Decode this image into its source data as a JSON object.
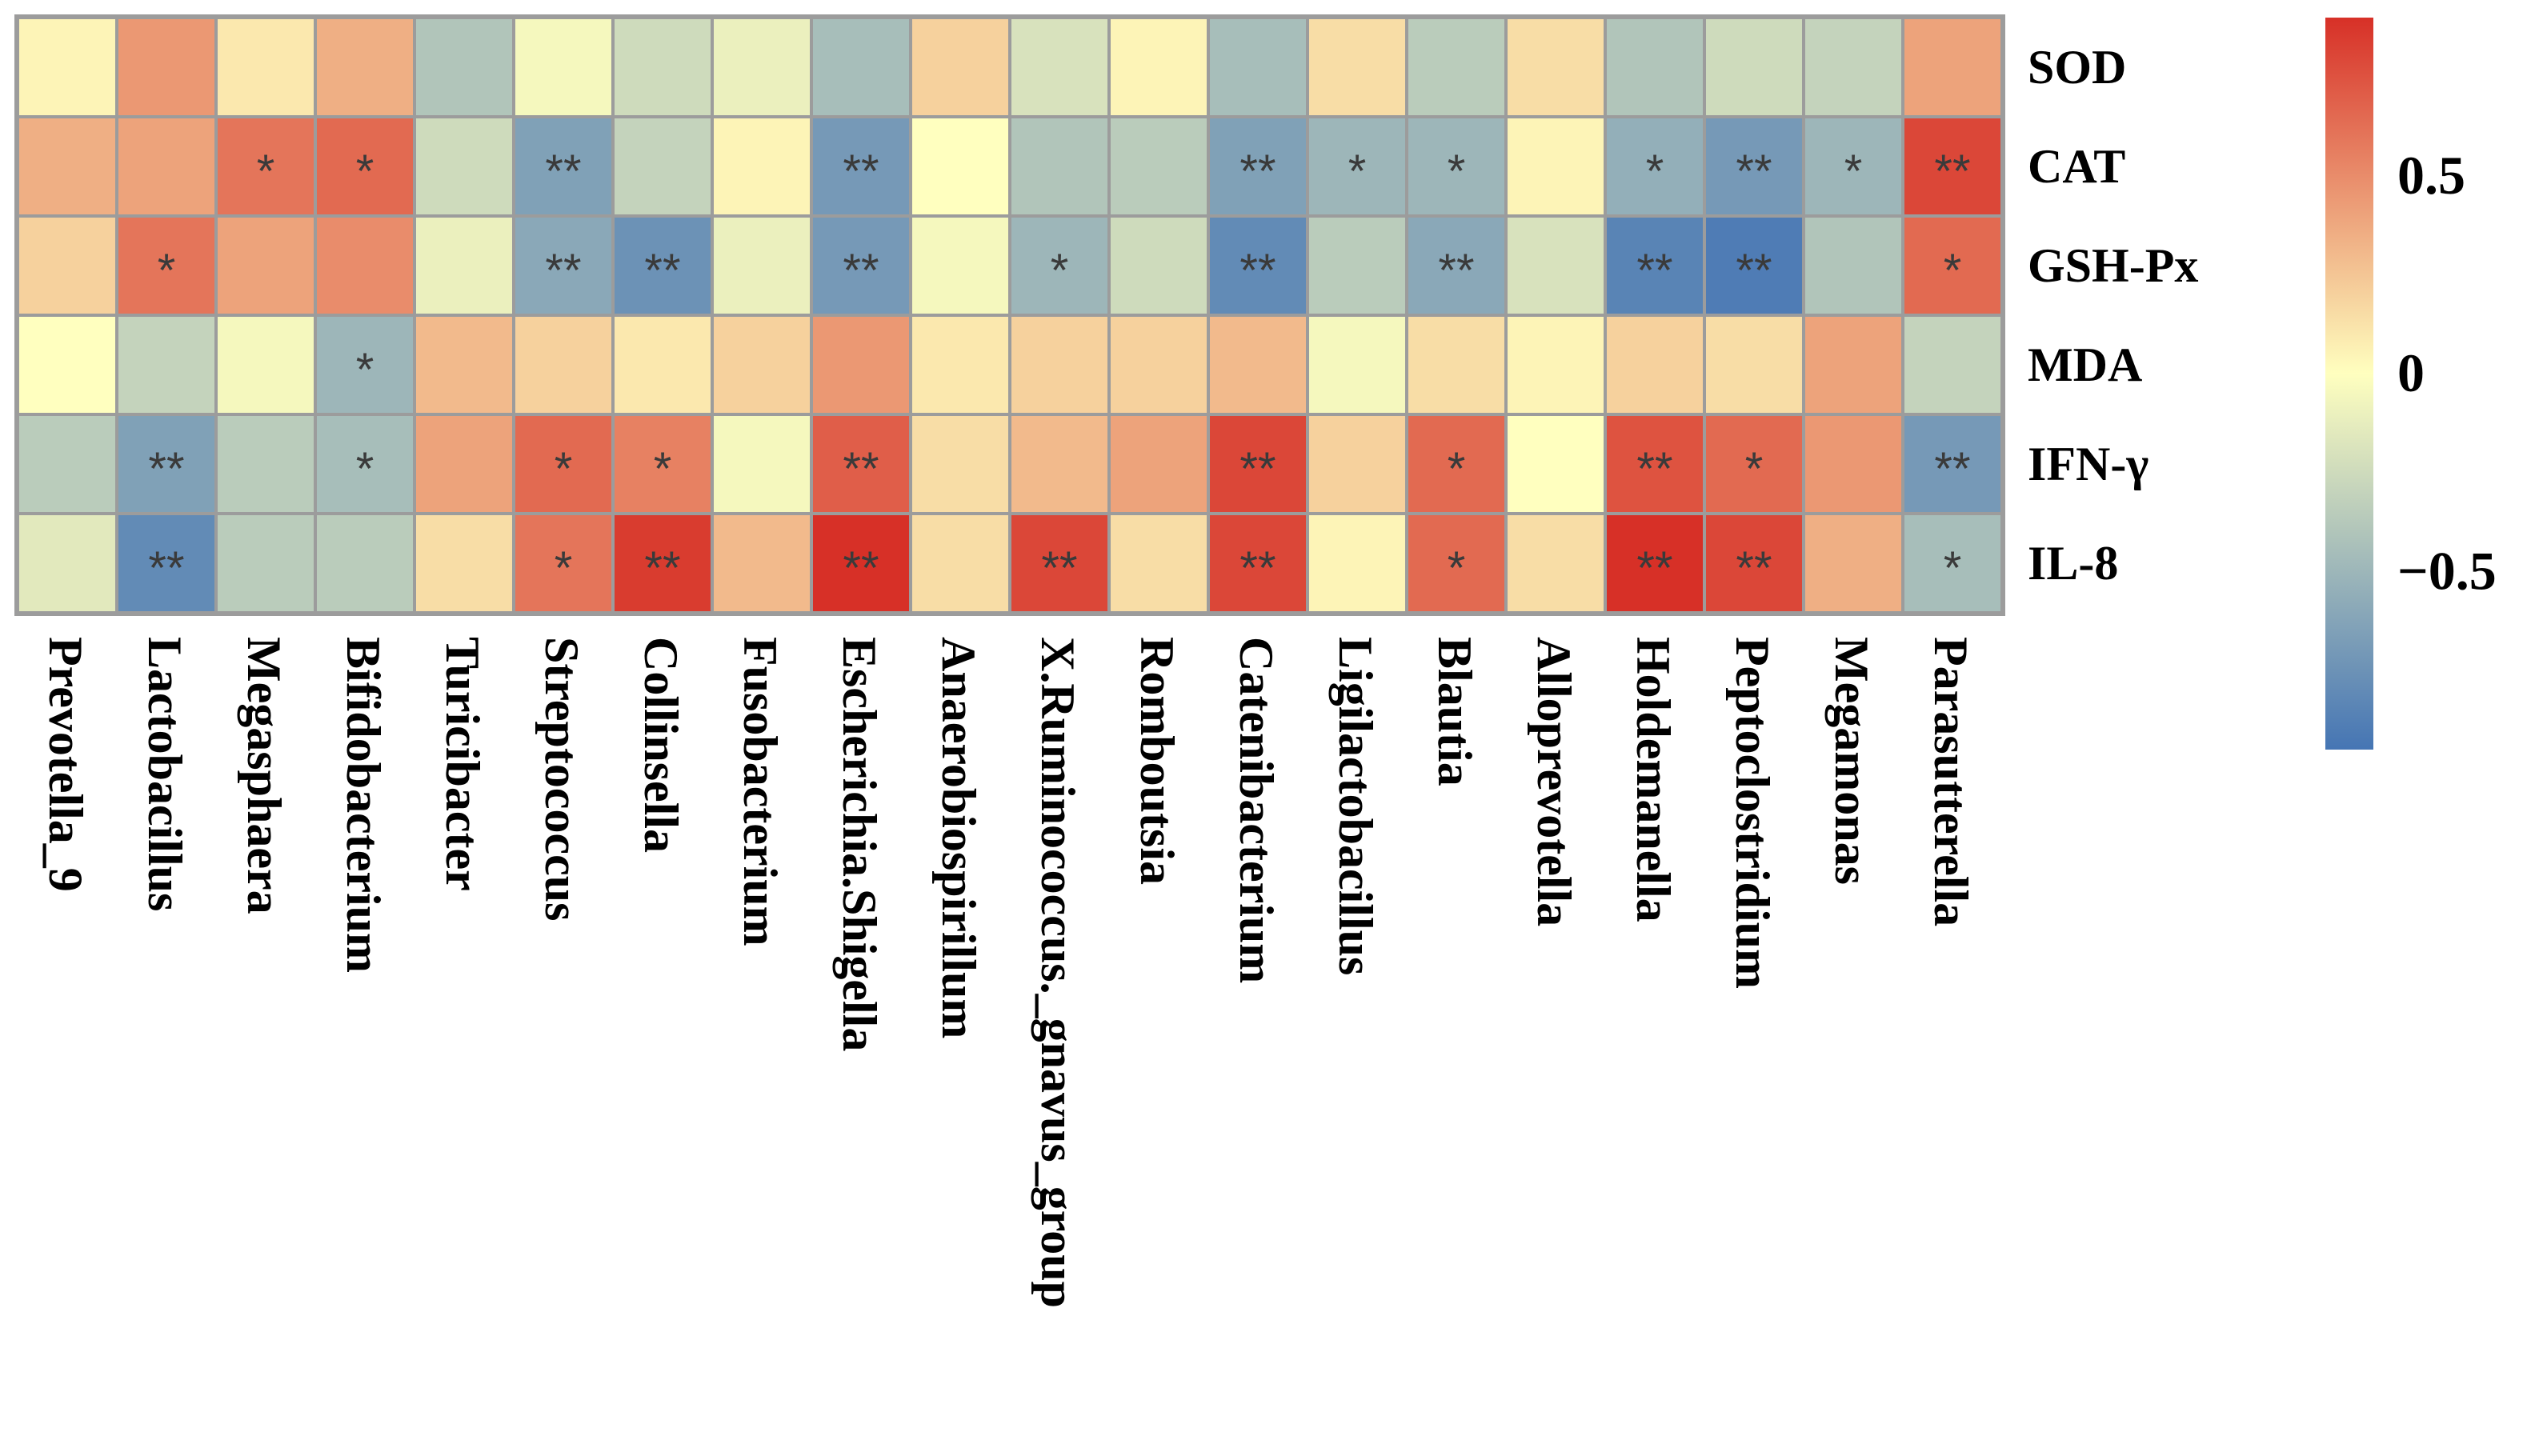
{
  "chart_data": {
    "type": "heatmap",
    "title": "",
    "columns": [
      "Prevotella_9",
      "Lactobacillus",
      "Megasphaera",
      "Bifidobacterium",
      "Turicibacter",
      "Streptococcus",
      "Collinsella",
      "Fusobacterium",
      "Escherichia.Shigella",
      "Anaerobiospirillum",
      "X.Ruminococcus._gnavus_group",
      "Romboutsia",
      "Catenibacterium",
      "Ligilactobacillus",
      "Blautia",
      "Alloprevotella",
      "Holdemanella",
      "Peptoclostridium",
      "Megamonas",
      "Parasutterella"
    ],
    "rows": [
      "SOD",
      "CAT",
      "GSH-Px",
      "MDA",
      "IFN-γ",
      "IL-8"
    ],
    "values": [
      [
        0.05,
        0.45,
        0.1,
        0.35,
        -0.4,
        -0.05,
        -0.25,
        -0.1,
        -0.45,
        0.2,
        -0.2,
        0.05,
        -0.45,
        0.15,
        -0.35,
        0.15,
        -0.4,
        -0.25,
        -0.3,
        0.4
      ],
      [
        0.35,
        0.4,
        0.6,
        0.65,
        -0.25,
        -0.65,
        -0.3,
        0.05,
        -0.7,
        0.0,
        -0.4,
        -0.35,
        -0.65,
        -0.5,
        -0.5,
        0.05,
        -0.55,
        -0.7,
        -0.5,
        0.8
      ],
      [
        0.2,
        0.6,
        0.4,
        0.5,
        -0.1,
        -0.6,
        -0.75,
        -0.1,
        -0.7,
        -0.05,
        -0.5,
        -0.25,
        -0.8,
        -0.35,
        -0.6,
        -0.2,
        -0.85,
        -0.9,
        -0.4,
        0.65
      ],
      [
        0.0,
        -0.3,
        -0.05,
        -0.5,
        0.3,
        0.2,
        0.1,
        0.2,
        0.45,
        0.1,
        0.2,
        0.2,
        0.3,
        -0.05,
        0.15,
        0.05,
        0.2,
        0.15,
        0.4,
        -0.3
      ],
      [
        -0.35,
        -0.65,
        -0.35,
        -0.45,
        0.4,
        0.65,
        0.55,
        -0.05,
        0.7,
        0.15,
        0.3,
        0.4,
        0.8,
        0.2,
        0.65,
        0.0,
        0.75,
        0.65,
        0.45,
        -0.7
      ],
      [
        -0.15,
        -0.8,
        -0.35,
        -0.35,
        0.15,
        0.6,
        0.85,
        0.3,
        0.9,
        0.15,
        0.8,
        0.15,
        0.8,
        0.05,
        0.65,
        0.15,
        0.9,
        0.8,
        0.35,
        -0.45
      ]
    ],
    "significance": [
      [
        "",
        "",
        "",
        "",
        "",
        "",
        "",
        "",
        "",
        "",
        "",
        "",
        "",
        "",
        "",
        "",
        "",
        "",
        "",
        ""
      ],
      [
        "",
        "",
        "*",
        "*",
        "",
        "**",
        "",
        "",
        "**",
        "",
        "",
        "",
        "**",
        "*",
        "*",
        "",
        "*",
        "**",
        "*",
        "**"
      ],
      [
        "",
        "*",
        "",
        "",
        "",
        "**",
        "**",
        "",
        "**",
        "",
        "*",
        "",
        "**",
        "",
        "**",
        "",
        "**",
        "**",
        "",
        "*"
      ],
      [
        "",
        "",
        "",
        "*",
        "",
        "",
        "",
        "",
        "",
        "",
        "",
        "",
        "",
        "",
        "",
        "",
        "",
        "",
        "",
        ""
      ],
      [
        "",
        "**",
        "",
        "*",
        "",
        "*",
        "*",
        "",
        "**",
        "",
        "",
        "",
        "**",
        "",
        "*",
        "",
        "**",
        "*",
        "",
        "**"
      ],
      [
        "",
        "**",
        "",
        "",
        "",
        "*",
        "**",
        "",
        "**",
        "",
        "**",
        "",
        "**",
        "",
        "*",
        "",
        "**",
        "**",
        "",
        "*"
      ]
    ],
    "color_scale": {
      "min": -0.95,
      "max": 0.9,
      "low_color": "#4575b4",
      "mid_color": "#ffffbf",
      "high_color": "#d73027",
      "ticks": [
        {
          "value": 0.5,
          "label": "0.5"
        },
        {
          "value": 0,
          "label": "0"
        },
        {
          "value": -0.5,
          "label": "−0.5"
        }
      ]
    },
    "grid_color": "#9c9c9c"
  }
}
